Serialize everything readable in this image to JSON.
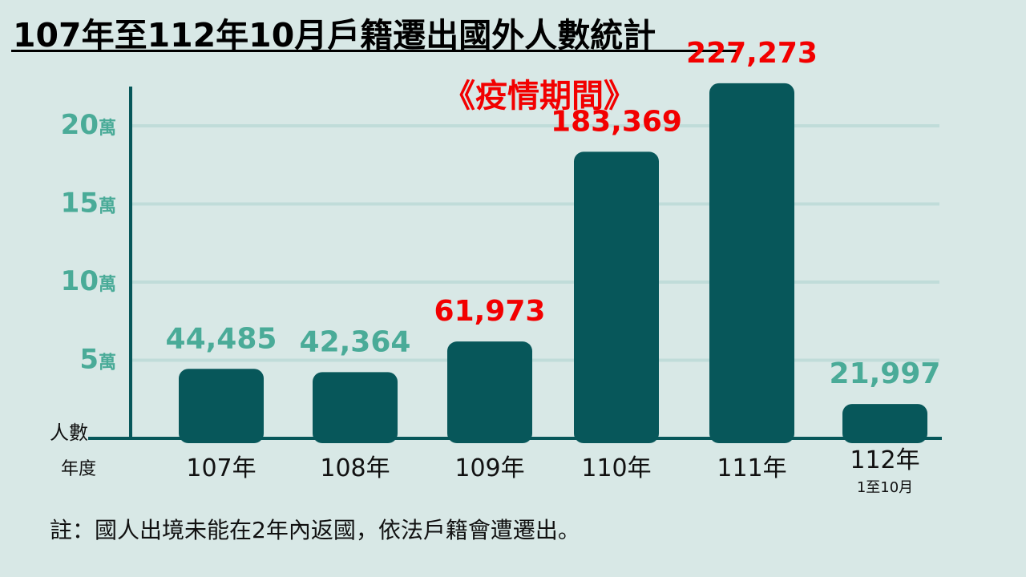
{
  "title": "107年至112年10月戶籍遷出國外人數統計",
  "note": "註：國人出境未能在2年內返國，依法戶籍會遭遷出。",
  "colors": {
    "bar": "#07575a",
    "highlight": "#f20000",
    "label": "#4aab98",
    "grid": "#c0dcd9"
  },
  "chart_data": {
    "type": "bar",
    "title": "107年至112年10月戶籍遷出國外人數統計",
    "xlabel": "年度",
    "ylabel": "人數",
    "categories": [
      "107年",
      "108年",
      "109年",
      "110年",
      "111年",
      "112年"
    ],
    "category_sublabels": [
      "",
      "",
      "",
      "",
      "",
      "1至10月"
    ],
    "values": [
      44485,
      42364,
      61973,
      183369,
      227273,
      21997
    ],
    "value_labels": [
      "44,485",
      "42,364",
      "61,973",
      "183,369",
      "227,273",
      "21,997"
    ],
    "highlighted": [
      false,
      false,
      true,
      true,
      true,
      false
    ],
    "annotation": "《疫情期間》",
    "ylim": [
      0,
      200000
    ],
    "yticks": [
      {
        "value": 50000,
        "num": "5",
        "unit": "萬"
      },
      {
        "value": 100000,
        "num": "10",
        "unit": "萬"
      },
      {
        "value": 150000,
        "num": "15",
        "unit": "萬"
      },
      {
        "value": 200000,
        "num": "20",
        "unit": "萬"
      }
    ],
    "grid": true,
    "legend": "none"
  }
}
